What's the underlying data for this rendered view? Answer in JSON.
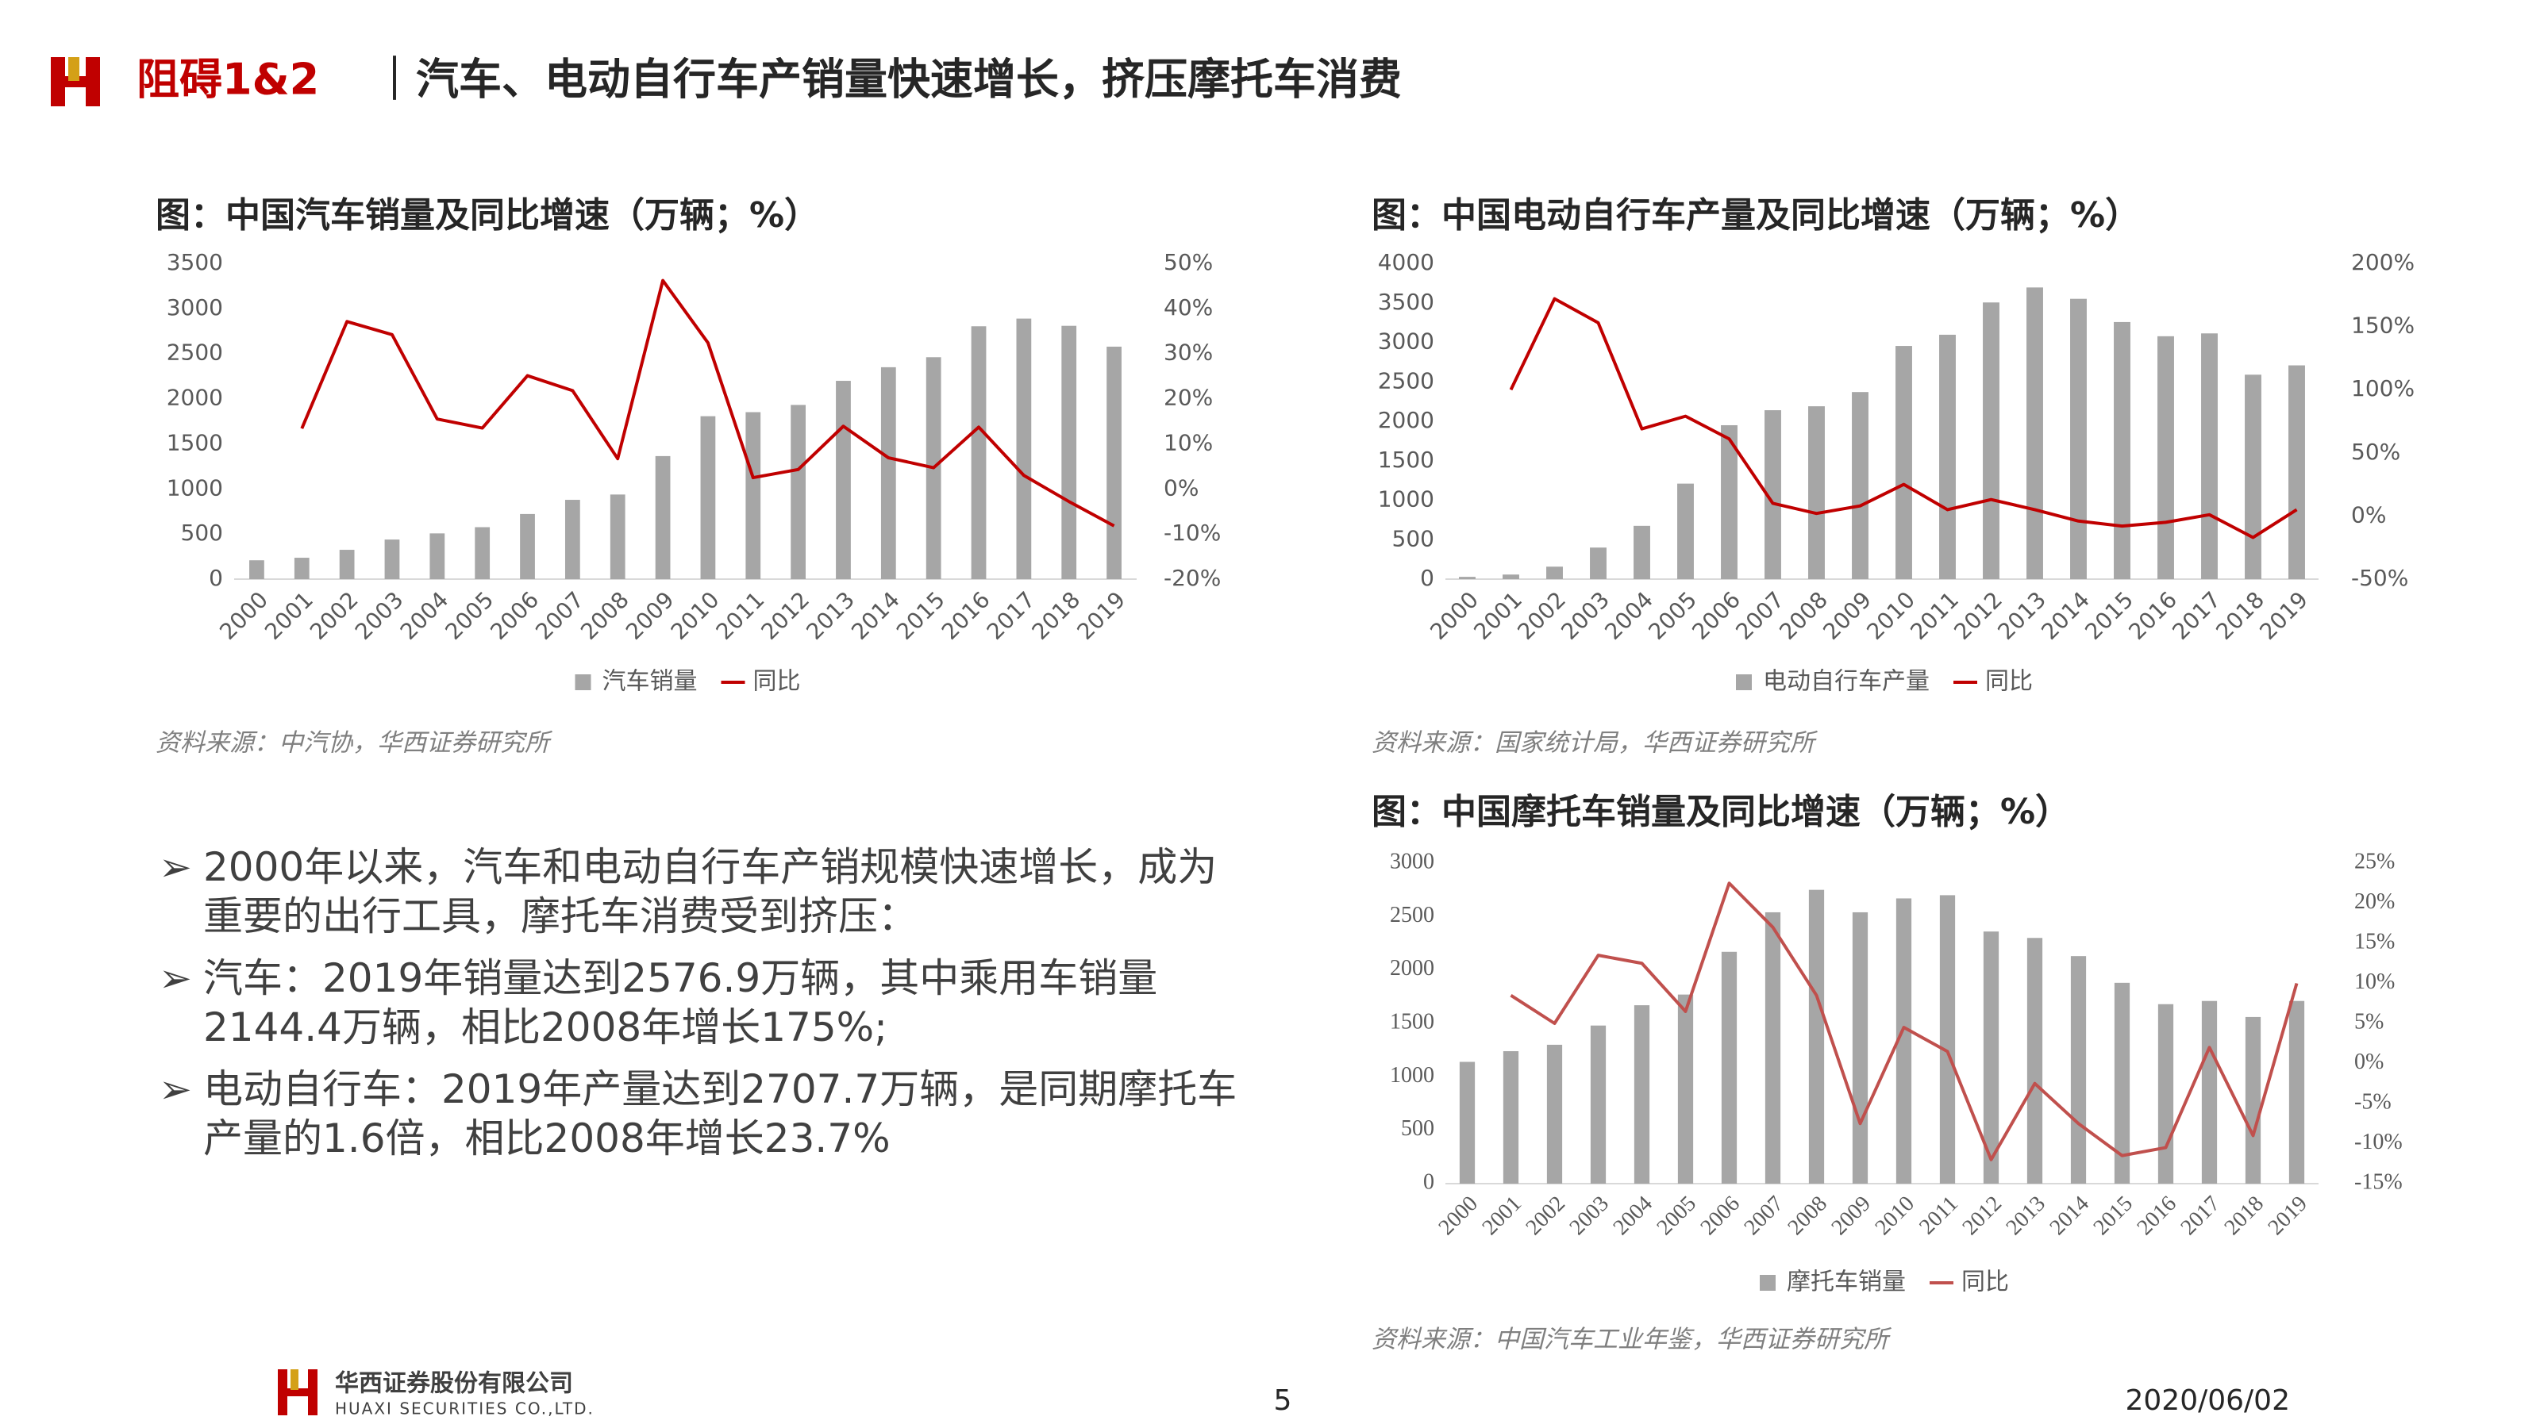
{
  "header": {
    "badge": "阻碍1&2",
    "title": "｜汽车、电动自行车产销量快速增长，挤压摩托车消费"
  },
  "chart_data": [
    {
      "type": "bar",
      "title": "图：中国汽车销量及同比增速（万辆；%）",
      "categories": [
        "2000",
        "2001",
        "2002",
        "2003",
        "2004",
        "2005",
        "2006",
        "2007",
        "2008",
        "2009",
        "2010",
        "2011",
        "2012",
        "2013",
        "2014",
        "2015",
        "2016",
        "2017",
        "2018",
        "2019"
      ],
      "series": [
        {
          "name": "汽车销量",
          "type": "bar",
          "color": "#a6a6a6",
          "values": [
            209,
            237,
            325,
            439,
            507,
            576,
            722,
            879,
            938,
            1364,
            1806,
            1851,
            1931,
            2198,
            2349,
            2460,
            2803,
            2888,
            2808,
            2577
          ]
        },
        {
          "name": "同比",
          "type": "line",
          "axis": "y2",
          "color": "#c00000",
          "values": [
            null,
            13.4,
            37.1,
            34.2,
            15.5,
            13.5,
            25.1,
            21.8,
            6.7,
            46.2,
            32.4,
            2.5,
            4.3,
            13.9,
            6.9,
            4.7,
            13.7,
            3.0,
            -2.8,
            -8.2
          ]
        }
      ],
      "ylim": [
        0,
        3500
      ],
      "yticks": [
        0,
        500,
        1000,
        1500,
        2000,
        2500,
        3000,
        3500
      ],
      "y2lim": [
        -20,
        50
      ],
      "y2ticks": [
        {
          "value": -20,
          "label": "-20%"
        },
        {
          "value": -10,
          "label": "-10%"
        },
        {
          "value": 0,
          "label": "0%"
        },
        {
          "value": 10,
          "label": "10%"
        },
        {
          "value": 20,
          "label": "20%"
        },
        {
          "value": 30,
          "label": "30%"
        },
        {
          "value": 40,
          "label": "40%"
        },
        {
          "value": 50,
          "label": "50%"
        }
      ],
      "grid": false,
      "legend": "bottom",
      "source": "资料来源：中汽协，华西证券研究所"
    },
    {
      "type": "bar",
      "title": "图：中国电动自行车产量及同比增速（万辆；%）",
      "categories": [
        "2000",
        "2001",
        "2002",
        "2003",
        "2004",
        "2005",
        "2006",
        "2007",
        "2008",
        "2009",
        "2010",
        "2011",
        "2012",
        "2013",
        "2014",
        "2015",
        "2016",
        "2017",
        "2018",
        "2019"
      ],
      "series": [
        {
          "name": "电动自行车产量",
          "type": "bar",
          "color": "#a6a6a6",
          "values": [
            29,
            58,
            158,
            400,
            675,
            1210,
            1950,
            2140,
            2190,
            2370,
            2954,
            3096,
            3505,
            3695,
            3551,
            3257,
            3077,
            3113,
            2590,
            2708
          ]
        },
        {
          "name": "同比",
          "type": "line",
          "axis": "y2",
          "color": "#c00000",
          "values": [
            null,
            100,
            172,
            153,
            69,
            79,
            61,
            10,
            2,
            8,
            25,
            5,
            13,
            5,
            -4,
            -8,
            -5,
            1,
            -17,
            5
          ]
        }
      ],
      "ylim": [
        0,
        4000
      ],
      "yticks": [
        0,
        500,
        1000,
        1500,
        2000,
        2500,
        3000,
        3500,
        4000
      ],
      "y2lim": [
        -50,
        200
      ],
      "y2ticks": [
        {
          "value": -50,
          "label": "-50%"
        },
        {
          "value": 0,
          "label": "0%"
        },
        {
          "value": 50,
          "label": "50%"
        },
        {
          "value": 100,
          "label": "100%"
        },
        {
          "value": 150,
          "label": "150%"
        },
        {
          "value": 200,
          "label": "200%"
        }
      ],
      "grid": false,
      "legend": "bottom",
      "source": "资料来源：国家统计局，华西证券研究所"
    },
    {
      "type": "bar",
      "title": "图：中国摩托车销量及同比增速（万辆；%）",
      "categories": [
        "2000",
        "2001",
        "2002",
        "2003",
        "2004",
        "2005",
        "2006",
        "2007",
        "2008",
        "2009",
        "2010",
        "2011",
        "2012",
        "2013",
        "2014",
        "2015",
        "2016",
        "2017",
        "2018",
        "2019"
      ],
      "series": [
        {
          "name": "摩托车销量",
          "type": "bar",
          "color": "#a6a6a6",
          "values": [
            1140,
            1240,
            1300,
            1480,
            1670,
            1770,
            2170,
            2540,
            2750,
            2540,
            2670,
            2700,
            2360,
            2300,
            2130,
            1880,
            1680,
            1710,
            1560,
            1710
          ]
        },
        {
          "name": "同比",
          "type": "line",
          "axis": "y2",
          "color": "#c0504d",
          "values": [
            null,
            8.5,
            5,
            13.5,
            12.5,
            6.5,
            22.5,
            17,
            8.5,
            -7.5,
            4.5,
            1.5,
            -12,
            -2.5,
            -7.5,
            -11.5,
            -10.5,
            2,
            -9,
            10
          ]
        }
      ],
      "ylim": [
        0,
        3000
      ],
      "yticks": [
        0,
        500,
        1000,
        1500,
        2000,
        2500,
        3000
      ],
      "y2lim": [
        -15,
        25
      ],
      "y2ticks": [
        {
          "value": -15,
          "label": "-15%"
        },
        {
          "value": -10,
          "label": "-10%"
        },
        {
          "value": -5,
          "label": "-5%"
        },
        {
          "value": 0,
          "label": "0%"
        },
        {
          "value": 5,
          "label": "5%"
        },
        {
          "value": 10,
          "label": "10%"
        },
        {
          "value": 15,
          "label": "15%"
        },
        {
          "value": 20,
          "label": "20%"
        },
        {
          "value": 25,
          "label": "25%"
        }
      ],
      "grid": false,
      "legend": "bottom",
      "source": "资料来源：中国汽车工业年鉴，华西证券研究所"
    }
  ],
  "bullets": [
    "2000年以来，汽车和电动自行车产销规模快速增长，成为重要的出行工具，摩托车消费受到挤压：",
    "汽车：2019年销量达到2576.9万辆，其中乘用车销量2144.4万辆，相比2008年增长175%;",
    "电动自行车：2019年产量达到2707.7万辆，是同期摩托车产量的1.6倍，相比2008年增长23.7%"
  ],
  "footer": {
    "company_cn": "华西证券股份有限公司",
    "company_en": "HUAXI SECURITIES CO.,LTD.",
    "page": "5",
    "date": "2020/06/02"
  }
}
